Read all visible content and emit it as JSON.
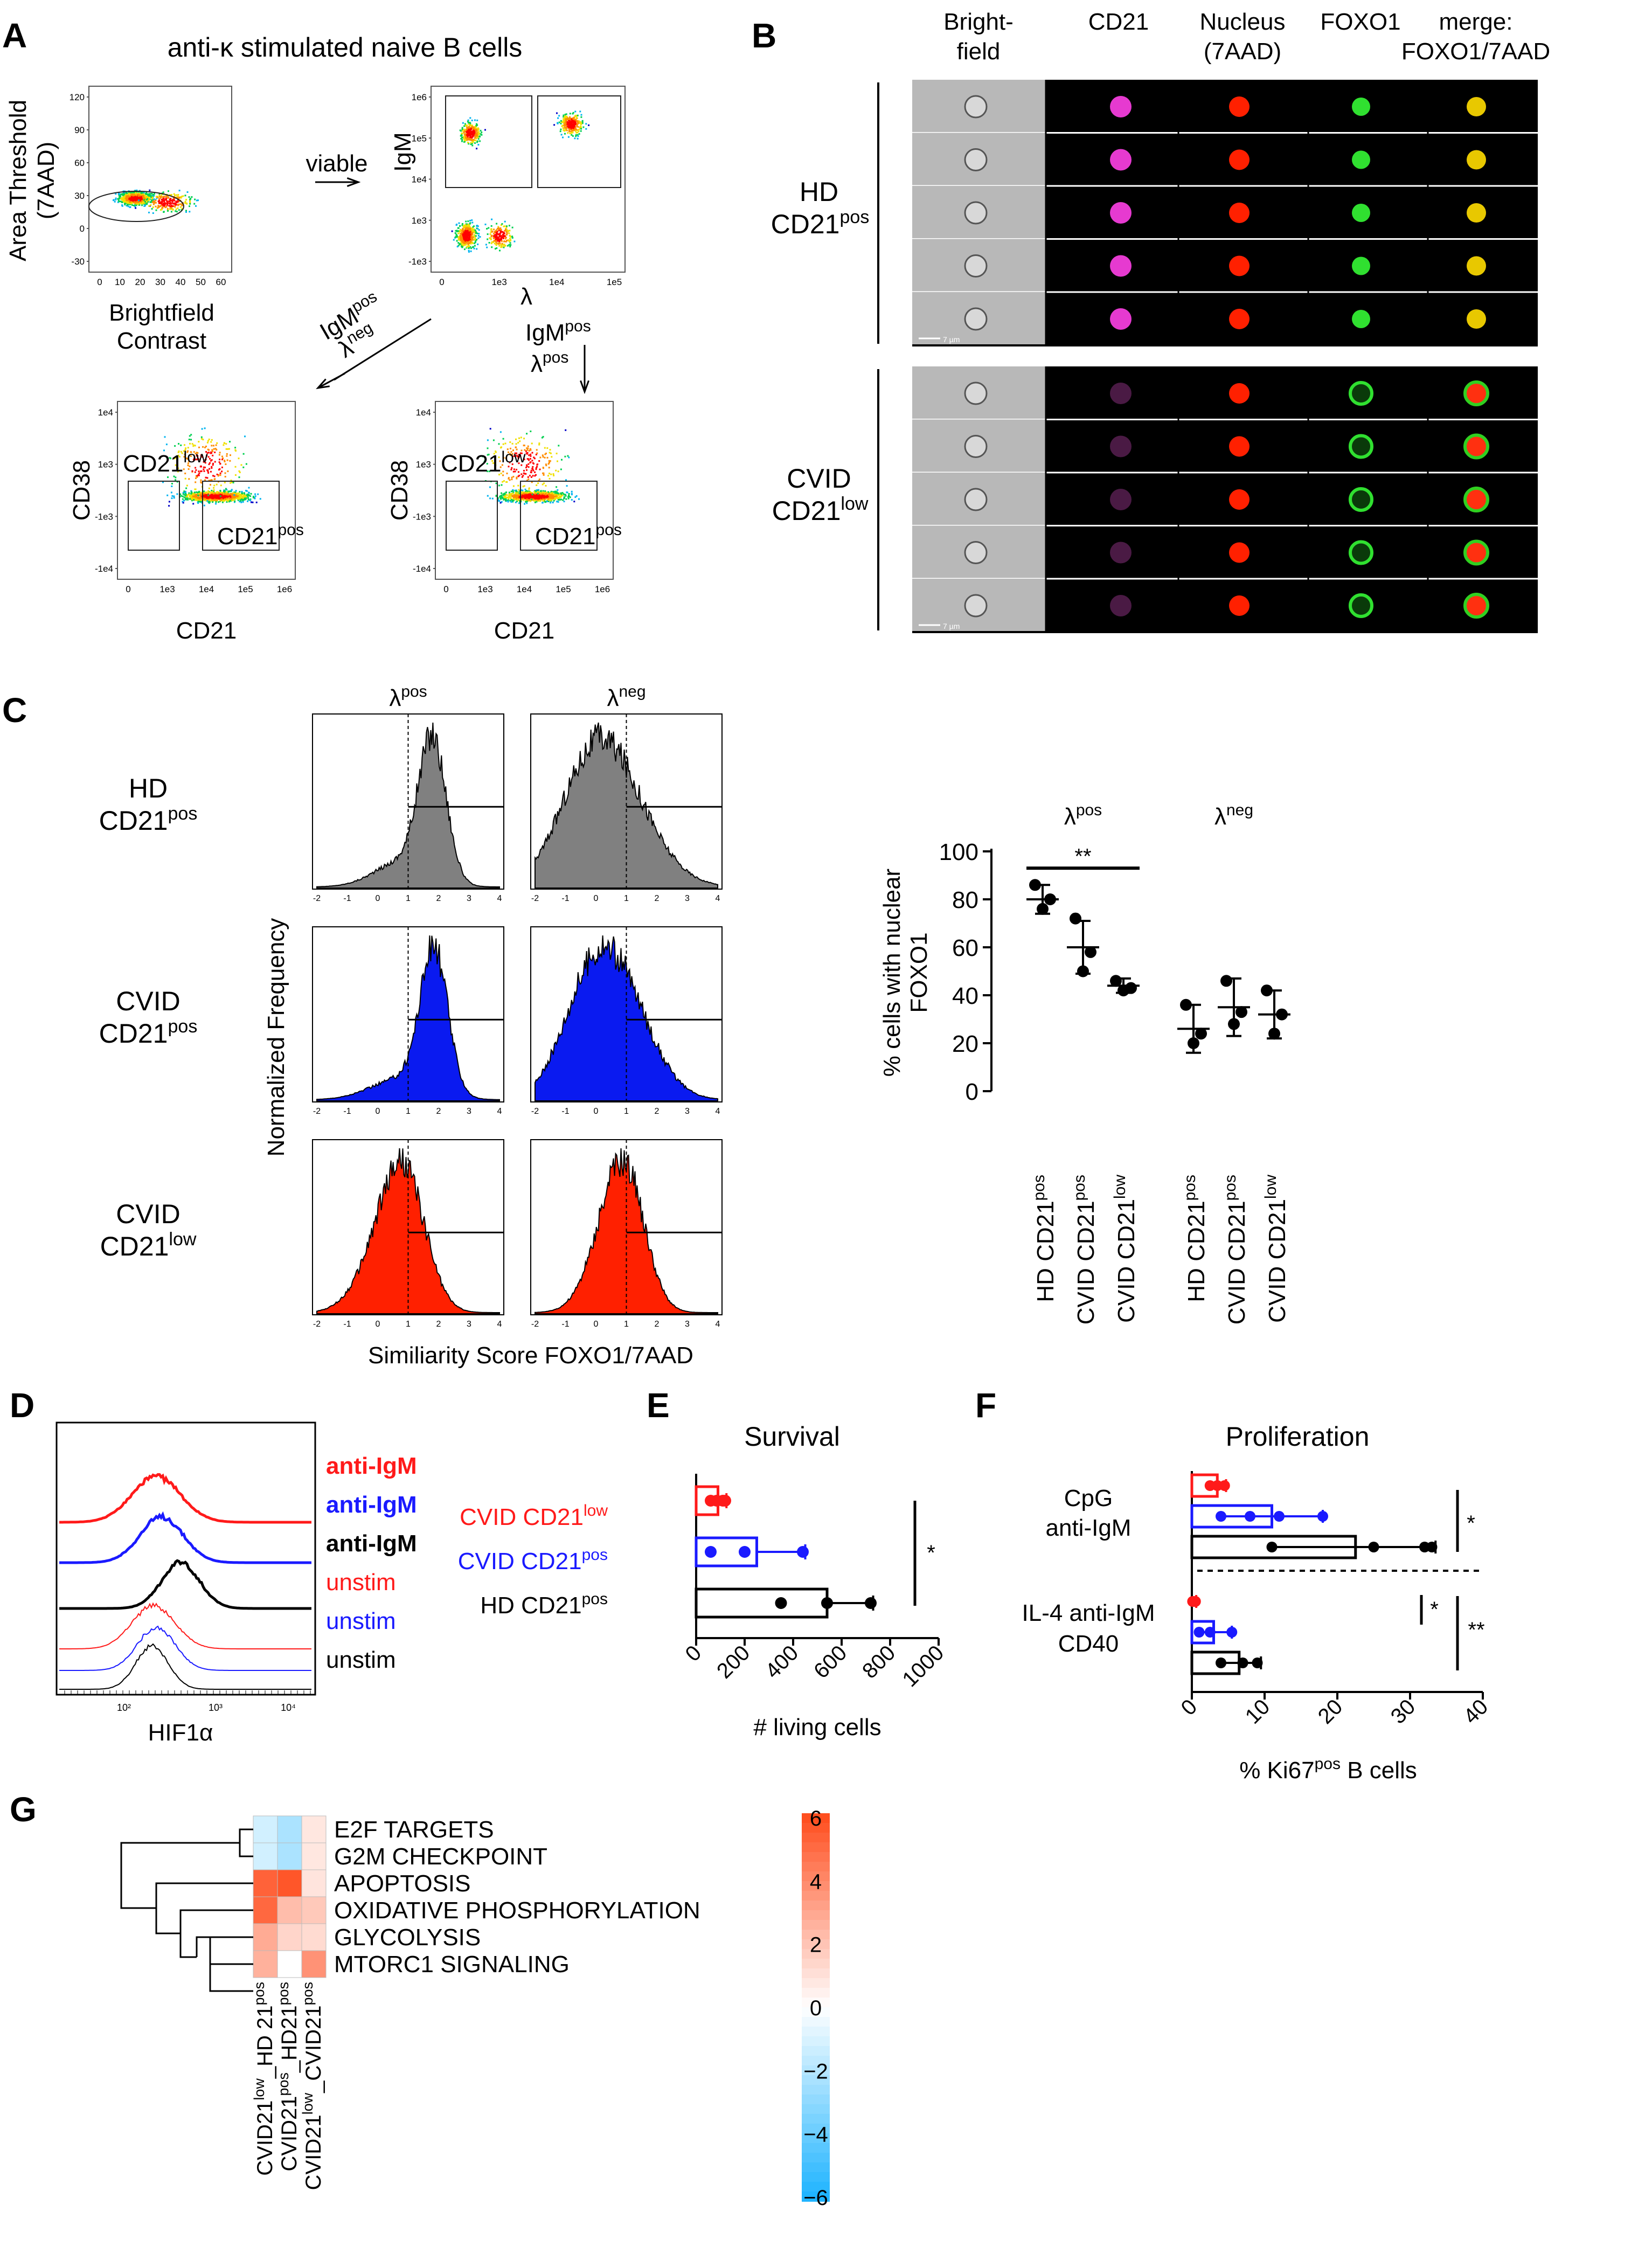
{
  "panels": {
    "A": {
      "letter": "A",
      "title": "anti-κ stimulated naive B cells",
      "plot1": {
        "ylabel1": "Area Threshold",
        "ylabel2": "(7AAD)",
        "xlabel1": "Brightfield",
        "xlabel2": "Contrast",
        "yticks": [
          "120",
          "90",
          "60",
          "30",
          "0",
          "-30"
        ],
        "xticks": [
          "0",
          "10",
          "20",
          "30",
          "40",
          "50",
          "60"
        ]
      },
      "viable": "viable",
      "plot2": {
        "ylabel": "IgM",
        "xlabel": "λ",
        "yticks": [
          "1e6",
          "1e5",
          "1e4",
          "1e3",
          "-1e3"
        ],
        "xticks": [
          "0",
          "1e3",
          "1e4",
          "1e5"
        ]
      },
      "arrow_left_label": {
        "a": "IgM",
        "a_sup": "pos",
        "b": "λ",
        "b_sup": "neg"
      },
      "arrow_down_label": {
        "a": "IgM",
        "a_sup": "pos",
        "b": "λ",
        "b_sup": "pos"
      },
      "plot3": {
        "ylabel": "CD38",
        "xlabel": "CD21",
        "gate_low": "CD21",
        "gate_low_sup": "low",
        "gate_pos": "CD21",
        "gate_pos_sup": "pos",
        "yticks": [
          "1e4",
          "1e3",
          "-1e3",
          "-1e4"
        ],
        "xticks": [
          "0",
          "1e3",
          "1e4",
          "1e5",
          "1e6"
        ]
      },
      "plot4": {
        "ylabel": "CD38",
        "xlabel": "CD21",
        "gate_low": "CD21",
        "gate_low_sup": "low",
        "gate_pos": "CD21",
        "gate_pos_sup": "pos",
        "yticks": [
          "1e4",
          "1e3",
          "-1e3",
          "-1e4"
        ],
        "xticks": [
          "0",
          "1e3",
          "1e4",
          "1e5",
          "1e6"
        ]
      }
    },
    "B": {
      "letter": "B",
      "columns": [
        {
          "l1": "Bright-",
          "l2": "field"
        },
        {
          "l1": "CD21",
          "l2": ""
        },
        {
          "l1": "Nucleus",
          "l2": "(7AAD)"
        },
        {
          "l1": "FOXO1",
          "l2": ""
        },
        {
          "l1": "merge:",
          "l2": "FOXO1/7AAD"
        }
      ],
      "groups": [
        {
          "l1": "HD",
          "l2": "CD21",
          "sup": "pos",
          "cd21": "#e63ad0",
          "merge": "#e8c800"
        },
        {
          "l1": "CVID",
          "l2": "CD21",
          "sup": "low",
          "cd21": "#4a1a44",
          "merge": "#e94a10"
        }
      ],
      "scale": "7 µm"
    },
    "C": {
      "letter": "C",
      "col_headers": [
        {
          "a": "λ",
          "sup": "pos"
        },
        {
          "a": "λ",
          "sup": "neg"
        }
      ],
      "row_labels": [
        {
          "l1": "HD",
          "l2": "CD21",
          "sup": "pos"
        },
        {
          "l1": "CVID",
          "l2": "CD21",
          "sup": "pos"
        },
        {
          "l1": "CVID",
          "l2": "CD21",
          "sup": "low"
        }
      ],
      "hist_colors": [
        "#808080",
        "#0a1af0",
        "#ff2000"
      ],
      "hist_xticks": [
        "-2",
        "-1",
        "0",
        "1",
        "2",
        "3",
        "4"
      ],
      "ylabel": "Normalized Frequency",
      "xlabel": "Similiarity Score FOXO1/7AAD"
    },
    "D": {
      "letter": "D",
      "xlabel": "HIF1α",
      "xticks": [
        "10²",
        "10³",
        "10⁴"
      ],
      "legend": [
        {
          "text": "anti-IgM",
          "color": "#ff1a1a",
          "bold": true
        },
        {
          "text": "anti-IgM",
          "color": "#1a1aff",
          "bold": true
        },
        {
          "text": "anti-IgM",
          "color": "#000000",
          "bold": true
        },
        {
          "text": "unstim",
          "color": "#ff1a1a",
          "bold": false
        },
        {
          "text": "unstim",
          "color": "#1a1aff",
          "bold": false
        },
        {
          "text": "unstim",
          "color": "#000000",
          "bold": false
        }
      ]
    },
    "E": {
      "letter": "E",
      "legend": [
        {
          "text": "CVID CD21",
          "sup": "low",
          "color": "#ff1a1a"
        },
        {
          "text": "CVID CD21",
          "sup": "pos",
          "color": "#1a1aff"
        },
        {
          "text": "HD CD21",
          "sup": "pos",
          "color": "#000000"
        }
      ]
    },
    "F": {
      "letter": "F",
      "group1": {
        "l1": "CpG",
        "l2": "anti-IgM"
      },
      "group2": {
        "l1": "IL-4 anti-IgM",
        "l2": "CD40"
      }
    },
    "G": {
      "letter": "G",
      "rows": [
        "E2F  TARGETS",
        "G2M CHECKPOINT",
        "APOPTOSIS",
        "OXIDATIVE PHOSPHORYLATION",
        "GLYCOLYSIS",
        "MTORC1 SIGNALING"
      ],
      "cols": [
        {
          "a": "CVID21",
          "asup": "low",
          "b": "_HD 21",
          "bsup": "pos"
        },
        {
          "a": "CVID21",
          "asup": "pos",
          "b": "_HD21",
          "bsup": "pos"
        },
        {
          "a": "CVID21",
          "asup": "low",
          "b": "_CVID21",
          "bsup": "pos"
        }
      ],
      "values": [
        [
          -1.2,
          -2.2,
          0.8
        ],
        [
          -1.2,
          -2.2,
          0.8
        ],
        [
          5.2,
          5.6,
          0.9
        ],
        [
          5.0,
          2.2,
          1.8
        ],
        [
          2.8,
          1.4,
          1.2
        ],
        [
          2.6,
          0.0,
          3.6
        ]
      ],
      "colorbar_ticks": [
        6,
        4,
        2,
        0,
        -2,
        -4,
        -6
      ]
    }
  },
  "chart_data": [
    {
      "type": "scatter",
      "panel": "C",
      "title": "",
      "ylabel": "% cells with nuclear FOXO1",
      "ylim": [
        0,
        100
      ],
      "yticks": [
        0,
        20,
        40,
        60,
        80,
        100
      ],
      "headers": [
        {
          "a": "λ",
          "sup": "pos"
        },
        {
          "a": "λ",
          "sup": "neg"
        }
      ],
      "categories": [
        {
          "a": "HD CD21",
          "sup": "pos"
        },
        {
          "a": "CVID CD21",
          "sup": "pos"
        },
        {
          "a": "CVID CD21",
          "sup": "low"
        },
        {
          "a": "HD CD21",
          "sup": "pos"
        },
        {
          "a": "CVID CD21",
          "sup": "pos"
        },
        {
          "a": "CVID CD21",
          "sup": "low"
        }
      ],
      "means": [
        80,
        60,
        44,
        26,
        35,
        32
      ],
      "sd": [
        6,
        11,
        3,
        10,
        12,
        10
      ],
      "points": [
        [
          86,
          76,
          80
        ],
        [
          72,
          50,
          58
        ],
        [
          46,
          42,
          43
        ],
        [
          36,
          20,
          24
        ],
        [
          46,
          28,
          33
        ],
        [
          42,
          24,
          32
        ]
      ],
      "significance": [
        {
          "from": 0,
          "to": 2,
          "label": "**"
        }
      ]
    },
    {
      "type": "bar",
      "panel": "E",
      "title": "Survival",
      "xlabel": "# living cells",
      "xlim": [
        0,
        1000
      ],
      "xticks": [
        0,
        200,
        400,
        600,
        800,
        1000
      ],
      "series": [
        {
          "name": "CVID CD21 low",
          "color": "#ff1a1a",
          "value": 90,
          "sd": 35,
          "points": [
            60,
            85,
            110,
            120
          ]
        },
        {
          "name": "CVID CD21 pos",
          "color": "#1a1aff",
          "value": 250,
          "sd": 200,
          "points": [
            60,
            200,
            440
          ]
        },
        {
          "name": "HD CD21 pos",
          "color": "#000000",
          "value": 540,
          "sd": 190,
          "points": [
            350,
            540,
            720
          ]
        }
      ],
      "significance": [
        {
          "label": "*"
        }
      ]
    },
    {
      "type": "bar",
      "panel": "F",
      "title": "Proliferation",
      "xlabel": "% Ki67 pos B cells",
      "xlabel_parts": {
        "a": "% Ki67",
        "sup": "pos",
        "b": " B cells"
      },
      "xlim": [
        0,
        40
      ],
      "xticks": [
        0,
        10,
        20,
        30,
        40
      ],
      "groups": [
        {
          "name": "CpG anti-IgM",
          "bars": [
            {
              "color": "#ff1a1a",
              "value": 3.5,
              "sd": 1.2,
              "points": [
                2.5,
                3.5,
                4.5
              ]
            },
            {
              "color": "#1a1aff",
              "value": 11,
              "sd": 7,
              "points": [
                4,
                8,
                12,
                18
              ]
            },
            {
              "color": "#000000",
              "value": 22.5,
              "sd": 11,
              "points": [
                11,
                25,
                32,
                33
              ]
            }
          ],
          "significance": "*"
        },
        {
          "name": "IL-4 anti-IgM CD40",
          "bars": [
            {
              "color": "#ff1a1a",
              "value": 0.3,
              "sd": 0.3,
              "points": [
                0.1,
                0.3,
                0.5
              ]
            },
            {
              "color": "#1a1aff",
              "value": 3,
              "sd": 2.5,
              "points": [
                1,
                2.5,
                5.5
              ]
            },
            {
              "color": "#000000",
              "value": 6.5,
              "sd": 3,
              "points": [
                4,
                7,
                9
              ]
            }
          ],
          "significance": [
            "*",
            "**"
          ]
        }
      ]
    }
  ]
}
